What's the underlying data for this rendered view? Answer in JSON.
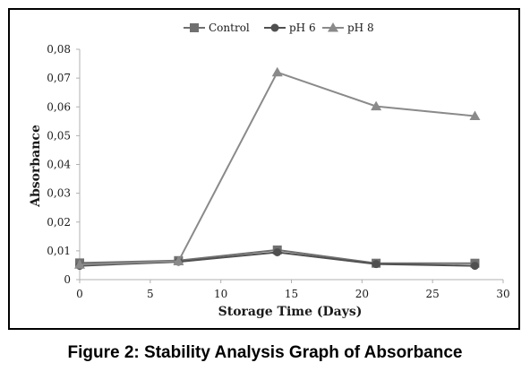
{
  "caption": "Figure 2: Stability Analysis Graph of Absorbance",
  "chart_data": {
    "type": "line",
    "title": "",
    "xlabel": "Storage Time (Days)",
    "ylabel": "Absorbance",
    "xlim": [
      0,
      30
    ],
    "ylim": [
      0,
      0.08
    ],
    "x_ticks": [
      "0",
      "5",
      "10",
      "15",
      "20",
      "25",
      "30"
    ],
    "y_ticks": [
      "0",
      "0,01",
      "0,02",
      "0,03",
      "0,04",
      "0,05",
      "0,06",
      "0,07",
      "0,08"
    ],
    "grid": false,
    "legend_position": "top-center",
    "x": [
      0,
      7,
      14,
      21,
      28
    ],
    "series": [
      {
        "name": "Control",
        "marker": "square",
        "color": "#707070",
        "values": [
          0.0058,
          0.0066,
          0.0103,
          0.0057,
          0.0057
        ]
      },
      {
        "name": "pH 6",
        "marker": "circle",
        "color": "#505050",
        "values": [
          0.0048,
          0.0062,
          0.0095,
          0.0054,
          0.0048
        ]
      },
      {
        "name": "pH 8",
        "marker": "triangle",
        "color": "#8a8a8a",
        "values": [
          0.0052,
          0.0064,
          0.072,
          0.0602,
          0.0568
        ]
      }
    ]
  }
}
